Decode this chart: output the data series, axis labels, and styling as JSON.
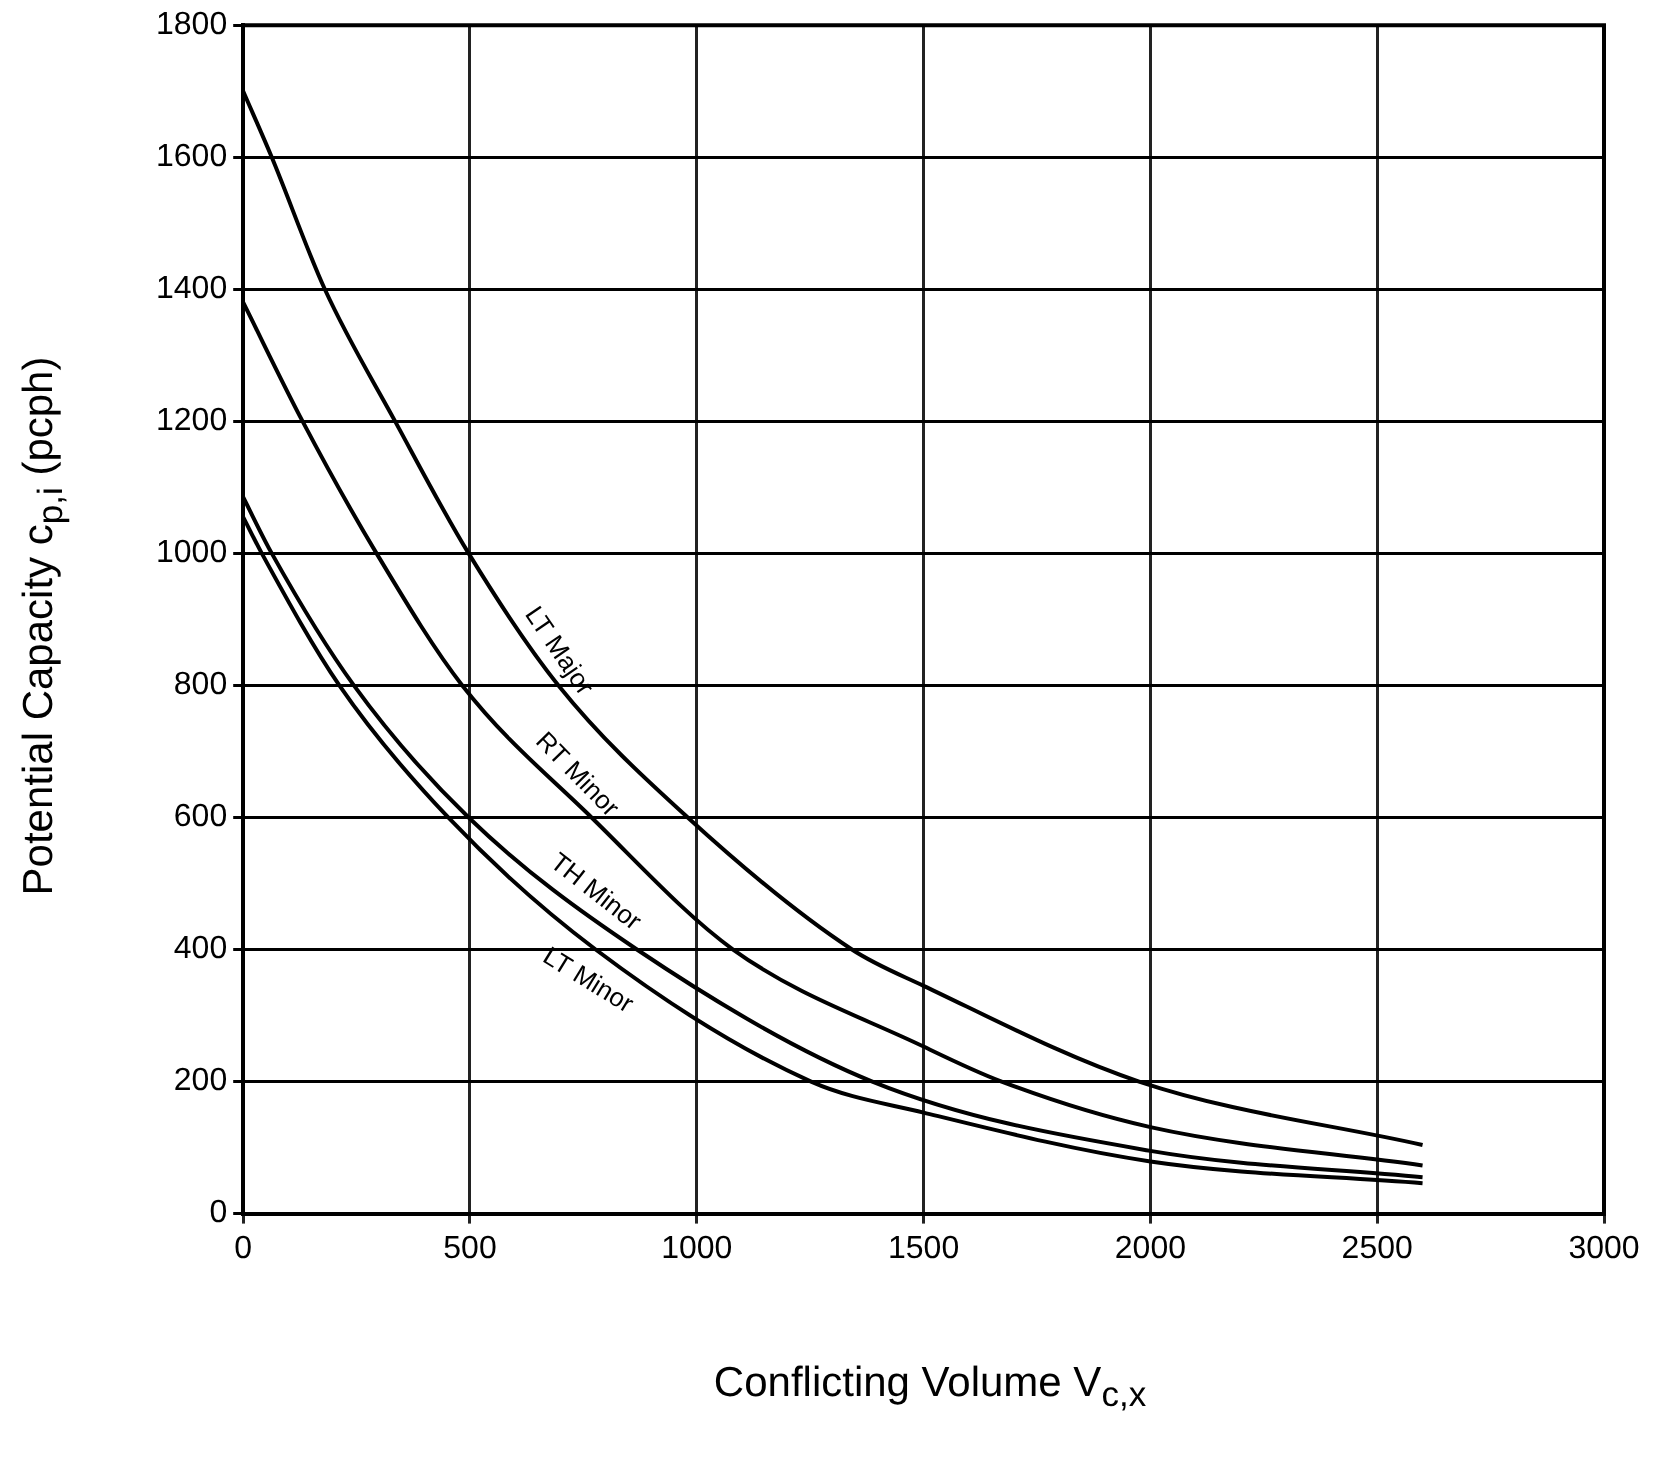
{
  "chart_data": {
    "type": "line",
    "xlabel": "Conflicting Volume V$_{c,x}$",
    "ylabel": "Potential Capacity c$_{p,i}$ (pcph)",
    "xlim": [
      0,
      3000
    ],
    "xticks": [
      0,
      500,
      1000,
      1500,
      2000,
      2500,
      3000
    ],
    "ylim": [
      0,
      1800
    ],
    "yticks": [
      0,
      200,
      400,
      600,
      800,
      1000,
      1200,
      1400,
      1600,
      1800
    ],
    "grid": true,
    "legend": false,
    "marker": "none",
    "line_style": "solid",
    "series": [
      {
        "name": "LT Major",
        "color": "#000000",
        "x": [
          0,
          63,
          180,
          335,
          497,
          695,
          980,
          1342,
          1500,
          1975,
          2600
        ],
        "values": [
          1700,
          1600,
          1400,
          1200,
          1000,
          800,
          600,
          400,
          345,
          200,
          104
        ]
      },
      {
        "name": "RT Minor",
        "color": "#000000",
        "x": [
          0,
          131,
          294,
          483,
          768,
          1080,
          1500,
          1672,
          2000,
          2600
        ],
        "values": [
          1380,
          1200,
          1000,
          800,
          600,
          400,
          253,
          200,
          131,
          73
        ]
      },
      {
        "name": "TH Minor",
        "color": "#000000",
        "x": [
          0,
          63,
          244,
          497,
          868,
          1387,
          2000,
          2600
        ],
        "values": [
          1085,
          1000,
          800,
          600,
          400,
          200,
          95,
          55
        ]
      },
      {
        "name": "LT Minor",
        "color": "#000000",
        "x": [
          0,
          41,
          212,
          452,
          777,
          1252,
          1500,
          2000,
          2600
        ],
        "values": [
          1055,
          1000,
          800,
          600,
          400,
          200,
          153,
          79,
          46
        ]
      }
    ]
  }
}
